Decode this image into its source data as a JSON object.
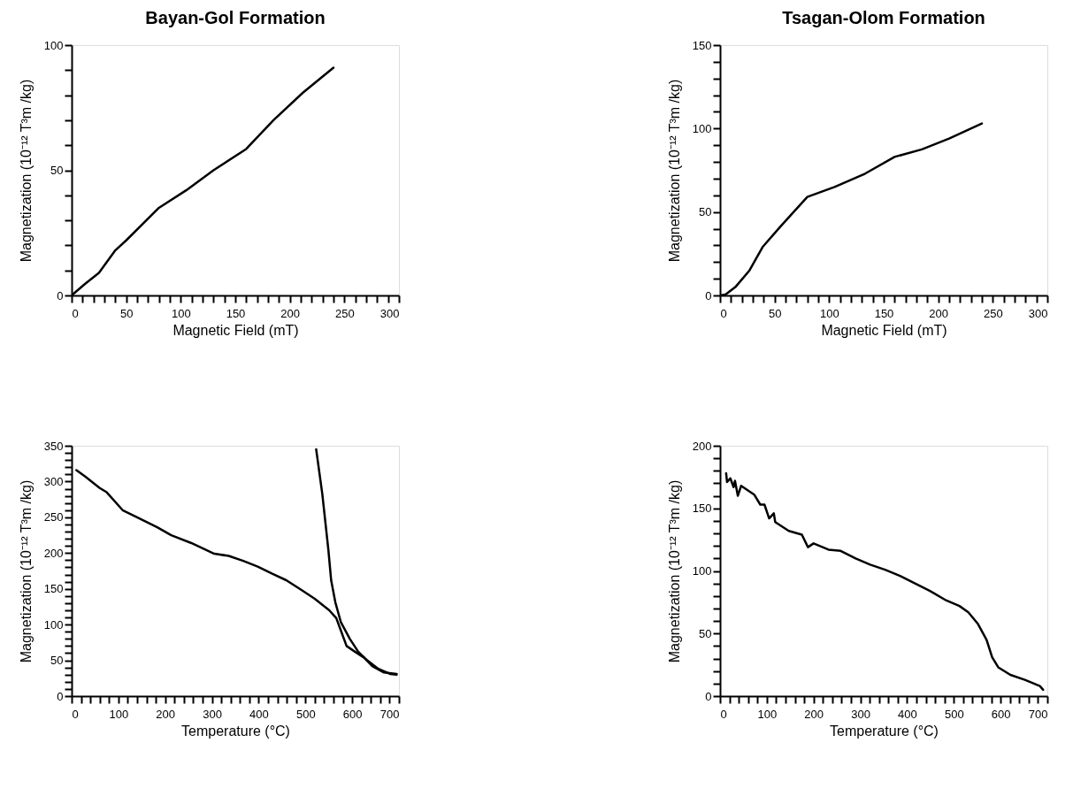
{
  "chart_data": [
    {
      "type": "line",
      "title": "Bayan-Gol Formation",
      "xlabel": "Magnetic Field (mT)",
      "ylabel": "Magnetization (10⁻¹² T³m  /kg)",
      "grid": false,
      "marker": "none",
      "line_style": "solid",
      "xlim": [
        0,
        300
      ],
      "ylim": [
        0,
        100
      ],
      "xticks": [
        0,
        {
          "value": 10,
          "label": null
        },
        {
          "value": 20,
          "label": null
        },
        {
          "value": 30,
          "label": null
        },
        {
          "value": 40,
          "label": null
        },
        50,
        {
          "value": 60,
          "label": null
        },
        {
          "value": 70,
          "label": null
        },
        {
          "value": 80,
          "label": null
        },
        {
          "value": 90,
          "label": null
        },
        100,
        {
          "value": 110,
          "label": null
        },
        {
          "value": 120,
          "label": null
        },
        {
          "value": 130,
          "label": null
        },
        {
          "value": 140,
          "label": null
        },
        150,
        {
          "value": 160,
          "label": null
        },
        {
          "value": 170,
          "label": null
        },
        {
          "value": 180,
          "label": null
        },
        {
          "value": 190,
          "label": null
        },
        200,
        {
          "value": 210,
          "label": null
        },
        {
          "value": 220,
          "label": null
        },
        {
          "value": 230,
          "label": null
        },
        {
          "value": 240,
          "label": null
        },
        250,
        {
          "value": 260,
          "label": null
        },
        {
          "value": 270,
          "label": null
        },
        {
          "value": 280,
          "label": null
        },
        {
          "value": 290,
          "label": null
        },
        300
      ],
      "yticks": [
        0,
        {
          "value": 10,
          "label": null
        },
        {
          "value": 20,
          "label": null
        },
        {
          "value": 30,
          "label": null
        },
        {
          "value": 40,
          "label": null
        },
        50,
        {
          "value": 60,
          "label": null
        },
        {
          "value": 70,
          "label": null
        },
        {
          "value": 80,
          "label": null
        },
        {
          "value": 90,
          "label": null
        },
        100
      ],
      "series": [
        {
          "color": "#000000",
          "x": [
            0,
            12,
            25,
            40,
            50,
            80,
            105,
            130,
            160,
            185,
            212,
            240
          ],
          "values": [
            0,
            4.5,
            9,
            18,
            22,
            35,
            42,
            50,
            58.5,
            70,
            81,
            91
          ]
        }
      ]
    },
    {
      "type": "line",
      "title": "Tsagan-Olom Formation",
      "xlabel": "Magnetic Field (mT)",
      "ylabel": "Magnetization (10⁻¹² T³m  /kg)",
      "grid": false,
      "marker": "none",
      "line_style": "solid",
      "xlim": [
        0,
        300
      ],
      "ylim": [
        0,
        150
      ],
      "xticks": [
        0,
        {
          "value": 10,
          "label": null
        },
        {
          "value": 20,
          "label": null
        },
        {
          "value": 30,
          "label": null
        },
        {
          "value": 40,
          "label": null
        },
        50,
        {
          "value": 60,
          "label": null
        },
        {
          "value": 70,
          "label": null
        },
        {
          "value": 80,
          "label": null
        },
        {
          "value": 90,
          "label": null
        },
        100,
        {
          "value": 110,
          "label": null
        },
        {
          "value": 120,
          "label": null
        },
        {
          "value": 130,
          "label": null
        },
        {
          "value": 140,
          "label": null
        },
        150,
        {
          "value": 160,
          "label": null
        },
        {
          "value": 170,
          "label": null
        },
        {
          "value": 180,
          "label": null
        },
        {
          "value": 190,
          "label": null
        },
        200,
        {
          "value": 210,
          "label": null
        },
        {
          "value": 220,
          "label": null
        },
        {
          "value": 230,
          "label": null
        },
        {
          "value": 240,
          "label": null
        },
        250,
        {
          "value": 260,
          "label": null
        },
        {
          "value": 270,
          "label": null
        },
        {
          "value": 280,
          "label": null
        },
        {
          "value": 290,
          "label": null
        },
        300
      ],
      "yticks": [
        0,
        {
          "value": 10,
          "label": null
        },
        {
          "value": 20,
          "label": null
        },
        {
          "value": 30,
          "label": null
        },
        {
          "value": 40,
          "label": null
        },
        50,
        {
          "value": 60,
          "label": null
        },
        {
          "value": 70,
          "label": null
        },
        {
          "value": 80,
          "label": null
        },
        {
          "value": 90,
          "label": null
        },
        100,
        {
          "value": 110,
          "label": null
        },
        {
          "value": 120,
          "label": null
        },
        {
          "value": 130,
          "label": null
        },
        {
          "value": 140,
          "label": null
        },
        150
      ],
      "series": [
        {
          "color": "#000000",
          "x": [
            0,
            5,
            14,
            27,
            39,
            55,
            80,
            105,
            133,
            160,
            185,
            210,
            240
          ],
          "values": [
            0,
            0.5,
            5,
            15,
            29,
            41,
            59,
            65,
            73,
            83,
            87.5,
            94,
            103
          ]
        }
      ]
    },
    {
      "type": "line",
      "xlabel": "Temperature (°C)",
      "ylabel": "Magnetization (10⁻¹² T³m  /kg)",
      "grid": false,
      "marker": "none",
      "line_style": "solid",
      "xlim": [
        0,
        700
      ],
      "ylim": [
        0,
        350
      ],
      "xticks": [
        0,
        {
          "value": 20,
          "label": null
        },
        {
          "value": 40,
          "label": null
        },
        {
          "value": 60,
          "label": null
        },
        {
          "value": 80,
          "label": null
        },
        100,
        {
          "value": 120,
          "label": null
        },
        {
          "value": 140,
          "label": null
        },
        {
          "value": 160,
          "label": null
        },
        {
          "value": 180,
          "label": null
        },
        200,
        {
          "value": 220,
          "label": null
        },
        {
          "value": 240,
          "label": null
        },
        {
          "value": 260,
          "label": null
        },
        {
          "value": 280,
          "label": null
        },
        300,
        {
          "value": 320,
          "label": null
        },
        {
          "value": 340,
          "label": null
        },
        {
          "value": 360,
          "label": null
        },
        {
          "value": 380,
          "label": null
        },
        400,
        {
          "value": 420,
          "label": null
        },
        {
          "value": 440,
          "label": null
        },
        {
          "value": 460,
          "label": null
        },
        {
          "value": 480,
          "label": null
        },
        500,
        {
          "value": 520,
          "label": null
        },
        {
          "value": 540,
          "label": null
        },
        {
          "value": 560,
          "label": null
        },
        {
          "value": 580,
          "label": null
        },
        600,
        {
          "value": 620,
          "label": null
        },
        {
          "value": 640,
          "label": null
        },
        {
          "value": 660,
          "label": null
        },
        {
          "value": 680,
          "label": null
        },
        700
      ],
      "yticks": [
        0,
        {
          "value": 10,
          "label": null
        },
        {
          "value": 20,
          "label": null
        },
        {
          "value": 30,
          "label": null
        },
        {
          "value": 40,
          "label": null
        },
        50,
        {
          "value": 60,
          "label": null
        },
        {
          "value": 70,
          "label": null
        },
        {
          "value": 80,
          "label": null
        },
        {
          "value": 90,
          "label": null
        },
        100,
        {
          "value": 110,
          "label": null
        },
        {
          "value": 120,
          "label": null
        },
        {
          "value": 130,
          "label": null
        },
        {
          "value": 140,
          "label": null
        },
        150,
        {
          "value": 160,
          "label": null
        },
        {
          "value": 170,
          "label": null
        },
        {
          "value": 180,
          "label": null
        },
        {
          "value": 190,
          "label": null
        },
        200,
        {
          "value": 210,
          "label": null
        },
        {
          "value": 220,
          "label": null
        },
        {
          "value": 230,
          "label": null
        },
        {
          "value": 240,
          "label": null
        },
        250,
        {
          "value": 260,
          "label": null
        },
        {
          "value": 270,
          "label": null
        },
        {
          "value": 280,
          "label": null
        },
        {
          "value": 290,
          "label": null
        },
        300,
        {
          "value": 310,
          "label": null
        },
        {
          "value": 320,
          "label": null
        },
        {
          "value": 330,
          "label": null
        },
        {
          "value": 340,
          "label": null
        },
        350
      ],
      "series": [
        {
          "color": "#000000",
          "x": [
            10,
            29,
            60,
            75,
            109,
            140,
            183,
            213,
            256,
            305,
            336,
            367,
            398,
            429,
            459,
            490,
            520,
            551,
            566,
            575,
            588,
            606,
            625,
            643,
            668,
            695
          ],
          "values": [
            316,
            307,
            291,
            285,
            260,
            250,
            236,
            225,
            214,
            199,
            196,
            189,
            181,
            171,
            162,
            149,
            136,
            120,
            109,
            93,
            70,
            62,
            54,
            42,
            33,
            31
          ]
        },
        {
          "color": "#000000",
          "x": [
            523,
            536,
            549,
            555,
            564,
            576,
            595,
            613,
            632,
            656,
            681,
            695
          ],
          "values": [
            345,
            283,
            205,
            162,
            131,
            103,
            80,
            62,
            50,
            38,
            31,
            30
          ]
        }
      ]
    },
    {
      "type": "line",
      "xlabel": "Temperature (°C)",
      "ylabel": "Magnetization (10⁻¹² T³m  /kg)",
      "grid": false,
      "marker": "none",
      "line_style": "solid",
      "xlim": [
        0,
        700
      ],
      "ylim": [
        0,
        200
      ],
      "xticks": [
        0,
        {
          "value": 20,
          "label": null
        },
        {
          "value": 40,
          "label": null
        },
        {
          "value": 60,
          "label": null
        },
        {
          "value": 80,
          "label": null
        },
        100,
        {
          "value": 120,
          "label": null
        },
        {
          "value": 140,
          "label": null
        },
        {
          "value": 160,
          "label": null
        },
        {
          "value": 180,
          "label": null
        },
        200,
        {
          "value": 220,
          "label": null
        },
        {
          "value": 240,
          "label": null
        },
        {
          "value": 260,
          "label": null
        },
        {
          "value": 280,
          "label": null
        },
        300,
        {
          "value": 320,
          "label": null
        },
        {
          "value": 340,
          "label": null
        },
        {
          "value": 360,
          "label": null
        },
        {
          "value": 380,
          "label": null
        },
        400,
        {
          "value": 420,
          "label": null
        },
        {
          "value": 440,
          "label": null
        },
        {
          "value": 460,
          "label": null
        },
        {
          "value": 480,
          "label": null
        },
        500,
        {
          "value": 520,
          "label": null
        },
        {
          "value": 540,
          "label": null
        },
        {
          "value": 560,
          "label": null
        },
        {
          "value": 580,
          "label": null
        },
        600,
        {
          "value": 620,
          "label": null
        },
        {
          "value": 640,
          "label": null
        },
        {
          "value": 660,
          "label": null
        },
        {
          "value": 680,
          "label": null
        },
        700
      ],
      "yticks": [
        0,
        {
          "value": 10,
          "label": null
        },
        {
          "value": 20,
          "label": null
        },
        {
          "value": 30,
          "label": null
        },
        {
          "value": 40,
          "label": null
        },
        50,
        {
          "value": 60,
          "label": null
        },
        {
          "value": 70,
          "label": null
        },
        {
          "value": 80,
          "label": null
        },
        {
          "value": 90,
          "label": null
        },
        100,
        {
          "value": 110,
          "label": null
        },
        {
          "value": 120,
          "label": null
        },
        {
          "value": 130,
          "label": null
        },
        {
          "value": 140,
          "label": null
        },
        150,
        {
          "value": 160,
          "label": null
        },
        {
          "value": 170,
          "label": null
        },
        {
          "value": 180,
          "label": null
        },
        {
          "value": 190,
          "label": null
        },
        200
      ],
      "series": [
        {
          "color": "#000000",
          "x": [
            13,
            15,
            22,
            29,
            32,
            38,
            45,
            73,
            86,
            95,
            105,
            115,
            118,
            147,
            175,
            188,
            200,
            232,
            258,
            290,
            321,
            353,
            385,
            417,
            449,
            481,
            512,
            531,
            551,
            570,
            582,
            595,
            621,
            652,
            684,
            691
          ],
          "values": [
            178,
            171,
            174,
            167,
            172,
            160,
            168,
            161,
            153,
            153,
            142,
            146,
            139,
            132,
            129,
            119,
            122,
            117,
            116,
            110,
            105,
            101,
            96,
            90,
            84,
            77,
            72,
            67,
            58,
            45,
            31,
            23,
            17,
            13,
            8,
            5
          ]
        }
      ]
    }
  ]
}
